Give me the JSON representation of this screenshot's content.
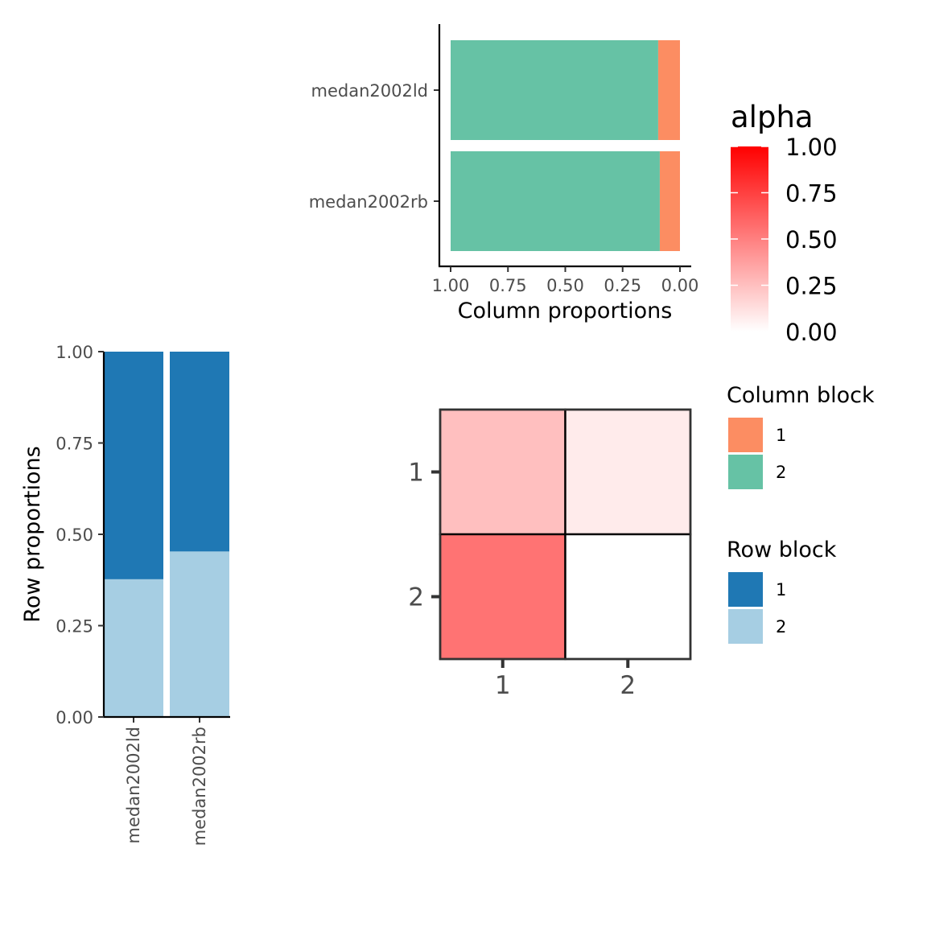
{
  "chart_data": [
    {
      "type": "bar",
      "orientation": "horizontal",
      "stacked": true,
      "name": "column-proportions",
      "categories": [
        "medan2002ld",
        "medan2002rb"
      ],
      "series": [
        {
          "name": "1",
          "values": [
            0.095,
            0.088
          ],
          "color": "#FC8D62"
        },
        {
          "name": "2",
          "values": [
            0.905,
            0.912
          ],
          "color": "#66C2A5"
        }
      ],
      "xlabel": "Column proportions",
      "xlim": [
        1.0,
        0.0
      ],
      "xticks": [
        "1.00",
        "0.75",
        "0.50",
        "0.25",
        "0.00"
      ],
      "xtick_values": [
        1.0,
        0.75,
        0.5,
        0.25,
        0.0
      ]
    },
    {
      "type": "bar",
      "orientation": "vertical",
      "stacked": true,
      "name": "row-proportions",
      "categories": [
        "medan2002ld",
        "medan2002rb"
      ],
      "series": [
        {
          "name": "2",
          "values": [
            0.377,
            0.453
          ],
          "color": "#A6CEE3"
        },
        {
          "name": "1",
          "values": [
            0.623,
            0.547
          ],
          "color": "#1F78B4"
        }
      ],
      "ylabel": "Row proportions",
      "ylim": [
        0.0,
        1.0
      ],
      "yticks": [
        "0.00",
        "0.25",
        "0.50",
        "0.75",
        "1.00"
      ],
      "ytick_values": [
        0.0,
        0.25,
        0.5,
        0.75,
        1.0
      ]
    },
    {
      "type": "heatmap",
      "name": "alpha-matrix",
      "rows": [
        "1",
        "2"
      ],
      "cols": [
        "1",
        "2"
      ],
      "values": [
        [
          0.25,
          0.08
        ],
        [
          0.55,
          0.0
        ]
      ],
      "colorbar": {
        "title": "alpha",
        "low_color": "#FFFFFF",
        "high_color": "#FF0000",
        "range": [
          0.0,
          1.0
        ],
        "ticks": [
          "0.00",
          "0.25",
          "0.50",
          "0.75",
          "1.00"
        ],
        "tick_values": [
          0.0,
          0.25,
          0.5,
          0.75,
          1.0
        ]
      }
    }
  ],
  "legends": {
    "column_block": {
      "title": "Column block",
      "items": [
        {
          "label": "1",
          "color": "#FC8D62"
        },
        {
          "label": "2",
          "color": "#66C2A5"
        }
      ]
    },
    "row_block": {
      "title": "Row block",
      "items": [
        {
          "label": "1",
          "color": "#1F78B4"
        },
        {
          "label": "2",
          "color": "#A6CEE3"
        }
      ]
    }
  }
}
